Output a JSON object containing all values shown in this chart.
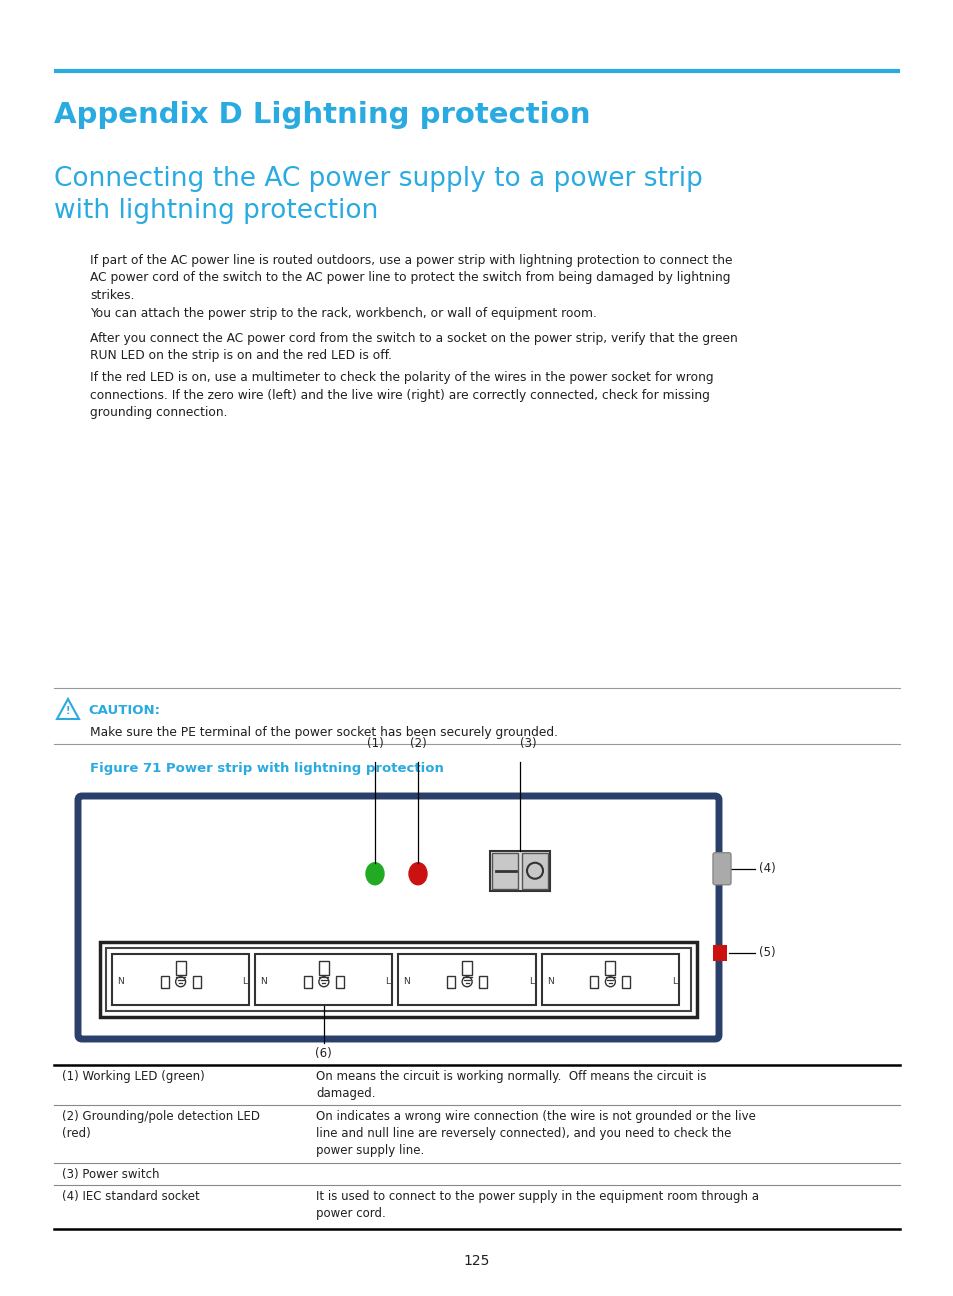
{
  "page_bg": "#ffffff",
  "cyan_color": "#29ABE2",
  "dark_navy": "#2B3F6B",
  "title_h1": "Appendix D Lightning protection",
  "title_h2": "Connecting the AC power supply to a power strip\nwith lightning protection",
  "body_color": "#231F20",
  "figure_title": "Figure 71 Power strip with lightning protection",
  "page_number": "125",
  "body_texts": [
    "If part of the AC power line is routed outdoors, use a power strip with lightning protection to connect the\nAC power cord of the switch to the AC power line to protect the switch from being damaged by lightning\nstrikes.",
    "You can attach the power strip to the rack, workbench, or wall of equipment room.",
    "After you connect the AC power cord from the switch to a socket on the power strip, verify that the green\nRUN LED on the strip is on and the red LED is off.",
    "If the red LED is on, use a multimeter to check the polarity of the wires in the power socket for wrong\nconnections. If the zero wire (left) and the live wire (right) are correctly connected, check for missing\ngrounding connection."
  ],
  "caution_text": "Make sure the PE terminal of the power socket has been securely grounded.",
  "table_rows": [
    [
      "(1) Working LED (green)",
      "On means the circuit is working normally.  Off means the circuit is\ndamaged."
    ],
    [
      "(2) Grounding/pole detection LED\n(red)",
      "On indicates a wrong wire connection (the wire is not grounded or the live\nline and null line are reversely connected), and you need to check the\npower supply line."
    ],
    [
      "(3) Power switch",
      ""
    ],
    [
      "(4) IEC standard socket",
      "It is used to connect to the power supply in the equipment room through a\npower cord."
    ]
  ]
}
